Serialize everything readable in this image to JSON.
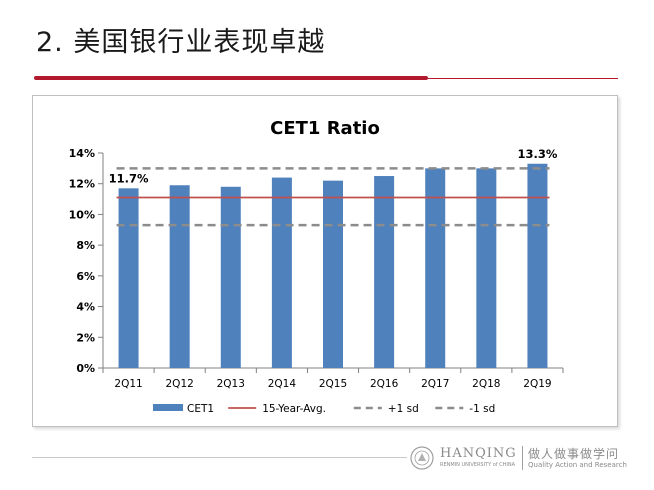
{
  "slide": {
    "title": "2. 美国银行业表现卓越"
  },
  "footer": {
    "brand_name": "HANQING",
    "brand_sub": "RENMIN UNIVERSITY of CHINA",
    "motto_cn": "做人做事做学问",
    "motto_en": "Quality Action and Research"
  },
  "colors": {
    "accent_red": "#b3192c",
    "bar_blue": "#4f81bd",
    "avg_line": "#c0504d",
    "sd_line": "#8c8c8c"
  },
  "chart_data": {
    "type": "bar",
    "title": "CET1 Ratio",
    "categories": [
      "2Q11",
      "2Q12",
      "2Q13",
      "2Q14",
      "2Q15",
      "2Q16",
      "2Q17",
      "2Q18",
      "2Q19"
    ],
    "series": [
      {
        "name": "CET1",
        "type": "bar",
        "values": [
          11.7,
          11.9,
          11.8,
          12.4,
          12.2,
          12.5,
          13.0,
          13.0,
          13.3
        ]
      },
      {
        "name": "15-Year-Avg.",
        "type": "line",
        "style": "solid",
        "value": 11.1
      },
      {
        "name": "+1 sd",
        "type": "line",
        "style": "dashed",
        "value": 13.0
      },
      {
        "name": "-1 sd",
        "type": "line",
        "style": "dashed",
        "value": 9.3
      }
    ],
    "data_labels": [
      {
        "category": "2Q11",
        "text": "11.7%"
      },
      {
        "category": "2Q19",
        "text": "13.3%"
      }
    ],
    "yticks": [
      "0%",
      "2%",
      "4%",
      "6%",
      "8%",
      "10%",
      "12%",
      "14%"
    ],
    "ylim": [
      0,
      14
    ],
    "grid": false,
    "legend": "bottom"
  }
}
